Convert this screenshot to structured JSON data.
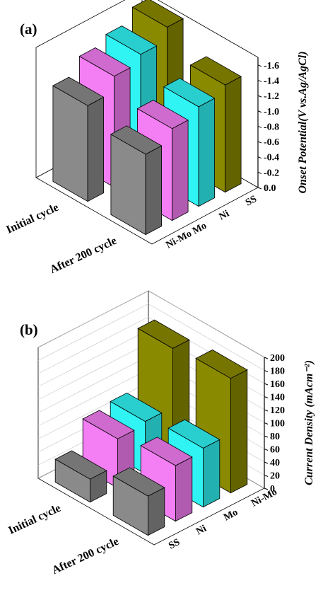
{
  "chart_data": [
    {
      "type": "bar3d",
      "title": "(a)",
      "ylabel": "Onset Potential(V vs.Ag/AgCl)",
      "categories": [
        "Ni-Mo",
        "Mo",
        "Ni",
        "SS"
      ],
      "colors": [
        "#8a8a8a",
        "#f47ef4",
        "#30f4f4",
        "#8a8a00"
      ],
      "series": [
        {
          "name": "Initial cycle",
          "values": [
            -1.25,
            -1.45,
            -1.55,
            -1.72
          ]
        },
        {
          "name": "After 200 cycle",
          "values": [
            -1.05,
            -1.2,
            -1.3,
            -1.4
          ]
        }
      ],
      "ylim": [
        0,
        -1.7
      ],
      "yticks": [
        {
          "value": 0,
          "label": "0.0"
        },
        -0.2,
        -0.4,
        -0.6,
        -0.8,
        {
          "value": -1,
          "label": "-1.0"
        },
        -1.2,
        -1.4,
        -1.6
      ],
      "grid": false
    },
    {
      "type": "bar3d",
      "title": "(b)",
      "ylabel": "Current Density (mAcm⁻²)",
      "categories": [
        "SS",
        "Ni",
        "Mo",
        "Ni-Mo"
      ],
      "colors": [
        "#8a8a8a",
        "#f47ef4",
        "#30f4f4",
        "#8a8a00"
      ],
      "series": [
        {
          "name": "Initial cycle",
          "values": [
            35,
            75,
            80,
            170
          ]
        },
        {
          "name": "After 200 cycle",
          "values": [
            60,
            85,
            90,
            175
          ]
        }
      ],
      "ylim": [
        0,
        200
      ],
      "yticks": [
        0,
        20,
        40,
        60,
        80,
        100,
        120,
        140,
        160,
        180,
        200
      ],
      "grid": true
    }
  ]
}
